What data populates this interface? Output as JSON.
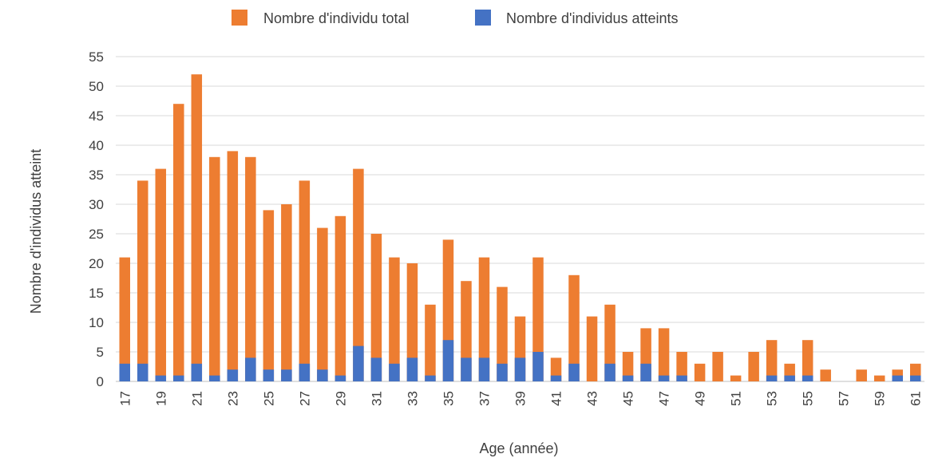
{
  "chart_data": {
    "type": "bar",
    "stacked": true,
    "xlabel": "Age (année)",
    "ylabel": "Nombre d'individus atteint",
    "ylim": [
      0,
      55
    ],
    "ytick_step": 5,
    "grid": true,
    "legend_position": "top",
    "categories": [
      "17",
      "18",
      "19",
      "20",
      "21",
      "22",
      "23",
      "24",
      "25",
      "26",
      "27",
      "28",
      "29",
      "30",
      "31",
      "32",
      "33",
      "34",
      "35",
      "36",
      "37",
      "38",
      "39",
      "40",
      "41",
      "42",
      "43",
      "44",
      "45",
      "46",
      "47",
      "48",
      "49",
      "50",
      "51",
      "52",
      "53",
      "54",
      "55",
      "56",
      "57",
      "58",
      "59",
      "60",
      "61"
    ],
    "x_tick_labels": [
      "17",
      "19",
      "21",
      "23",
      "25",
      "27",
      "29",
      "31",
      "33",
      "35",
      "37",
      "39",
      "41",
      "43",
      "45",
      "47",
      "49",
      "51",
      "53",
      "55",
      "57",
      "59",
      "61"
    ],
    "series": [
      {
        "name": "Nombre d'individu total",
        "color": "#ED7D31",
        "values": [
          21,
          34,
          36,
          47,
          52,
          38,
          39,
          38,
          29,
          30,
          34,
          26,
          28,
          36,
          25,
          21,
          20,
          13,
          24,
          17,
          21,
          16,
          11,
          21,
          4,
          18,
          11,
          13,
          5,
          9,
          9,
          5,
          3,
          5,
          1,
          5,
          7,
          3,
          7,
          2,
          0,
          2,
          1,
          2,
          3
        ]
      },
      {
        "name": "Nombre d'individus atteints",
        "color": "#4472C4",
        "values": [
          3,
          3,
          1,
          1,
          3,
          1,
          2,
          4,
          2,
          2,
          3,
          2,
          1,
          6,
          4,
          3,
          4,
          1,
          7,
          4,
          4,
          3,
          4,
          5,
          1,
          3,
          0,
          3,
          1,
          3,
          1,
          1,
          0,
          0,
          0,
          0,
          1,
          1,
          1,
          0,
          0,
          0,
          0,
          1,
          1
        ]
      }
    ]
  }
}
